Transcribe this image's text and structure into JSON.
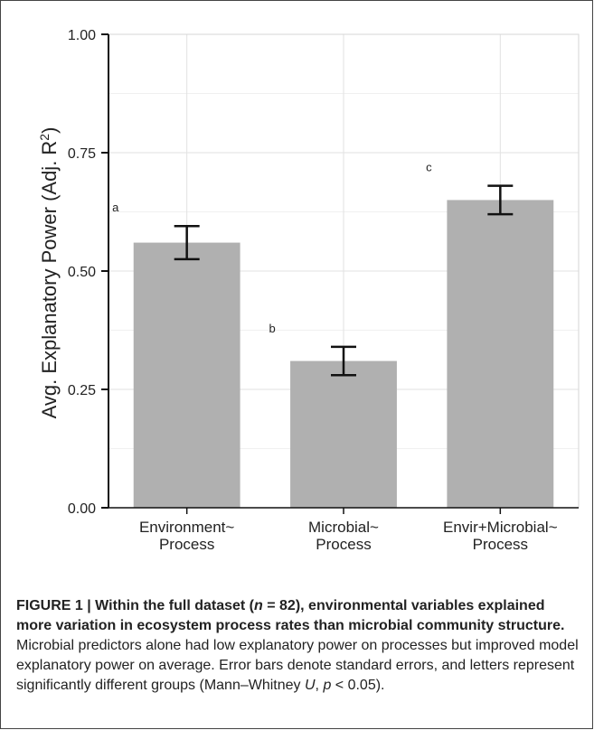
{
  "chart_data": {
    "type": "bar",
    "ylabel": "Avg. Explanatory Power (Adj. R",
    "ylabel_superscript": "2",
    "ylabel_close": ")",
    "ylim": [
      0,
      1
    ],
    "yticks": [
      "0.00",
      "0.25",
      "0.50",
      "0.75",
      "1.00"
    ],
    "ytick_values": [
      0,
      0.25,
      0.5,
      0.75,
      1.0
    ],
    "grid": true,
    "bar_color": "#b0b0b0",
    "categories": [
      {
        "line1": "Environment~",
        "line2": "Process"
      },
      {
        "line1": "Microbial~",
        "line2": "Process"
      },
      {
        "line1": "Envir+Microbial~",
        "line2": "Process"
      }
    ],
    "values": [
      0.56,
      0.31,
      0.65
    ],
    "errors": [
      0.035,
      0.03,
      0.03
    ],
    "letters": [
      "a",
      "b",
      "c"
    ]
  },
  "caption": {
    "label": "FIGURE 1 | ",
    "bold_a": "Within the full dataset (",
    "n_symbol": "n",
    "bold_b": " = 82), environmental variables explained more variation in ecosystem process rates than microbial community structure.",
    "text_a": " Microbial predictors alone had low explanatory power on processes but improved model explanatory power on average. Error bars denote standard errors, and letters represent significantly different groups (Mann–Whitney ",
    "u_symbol": "U",
    "text_b": ", ",
    "p_symbol": "p",
    "text_c": " < 0.05)."
  }
}
